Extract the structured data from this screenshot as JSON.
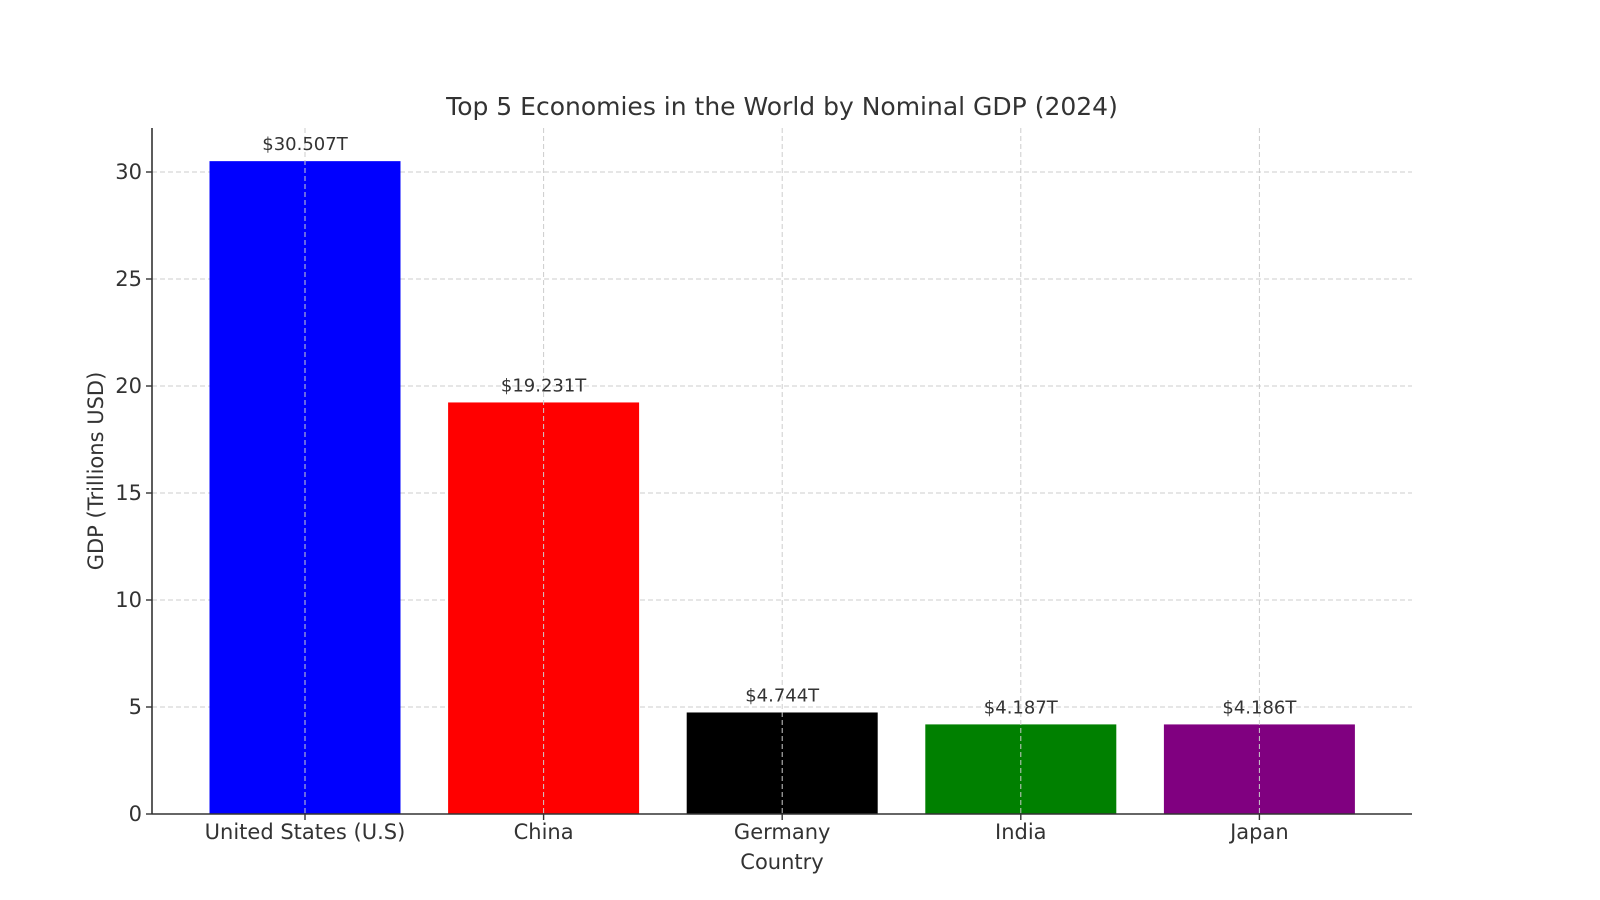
{
  "chart_data": {
    "type": "bar",
    "title": "Top 5 Economies in the World by Nominal GDP (2024)",
    "xlabel": "Country",
    "ylabel": "GDP (Trillions USD)",
    "categories": [
      "United States (U.S)",
      "China",
      "Germany",
      "India",
      "Japan"
    ],
    "values": [
      30.507,
      19.231,
      4.744,
      4.187,
      4.186
    ],
    "data_labels": [
      "$30.507T",
      "$19.231T",
      "$4.744T",
      "$4.187T",
      "$4.186T"
    ],
    "colors": [
      "#0000ff",
      "#ff0000",
      "#000000",
      "#008000",
      "#800080"
    ],
    "ylim": [
      0,
      32
    ],
    "yticks": [
      0,
      5,
      10,
      15,
      20,
      25,
      30
    ],
    "grid": true
  }
}
